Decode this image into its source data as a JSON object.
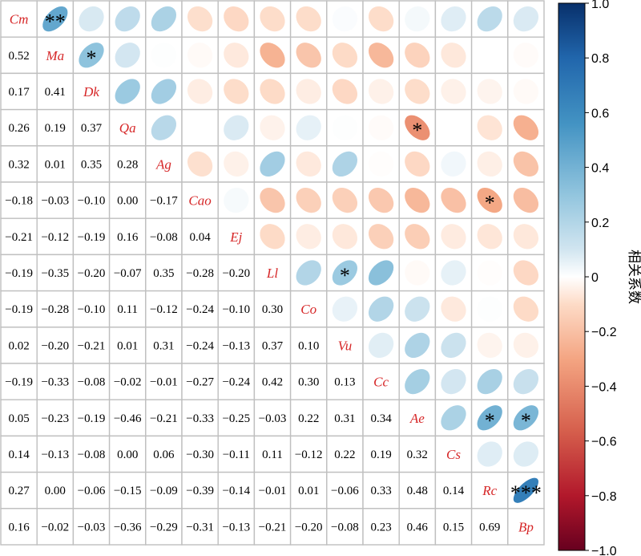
{
  "chart_data": {
    "type": "heatmap",
    "subtype": "correlation-matrix-ellipse",
    "variables": [
      "Cm",
      "Ma",
      "Dk",
      "Qa",
      "Ag",
      "Cao",
      "Ej",
      "Ll",
      "Co",
      "Vu",
      "Cc",
      "Ae",
      "Cs",
      "Rc",
      "Bp"
    ],
    "lower_triangle_labels": [
      [],
      [
        "0.52"
      ],
      [
        "0.17",
        "0.41"
      ],
      [
        "0.26",
        "0.19",
        "0.37"
      ],
      [
        "0.32",
        "0.01",
        "0.35",
        "0.28"
      ],
      [
        "−0.18",
        "−0.03",
        "−0.10",
        "0.00",
        "−0.17"
      ],
      [
        "−0.21",
        "−0.12",
        "−0.19",
        "0.16",
        "−0.08",
        "0.04"
      ],
      [
        "−0.19",
        "−0.35",
        "−0.20",
        "−0.07",
        "0.35",
        "−0.28",
        "−0.20"
      ],
      [
        "−0.19",
        "−0.28",
        "−0.10",
        "0.11",
        "−0.12",
        "−0.24",
        "−0.10",
        "0.30"
      ],
      [
        "0.02",
        "−0.20",
        "−0.21",
        "0.01",
        "0.31",
        "−0.24",
        "−0.13",
        "0.37",
        "0.10"
      ],
      [
        "−0.19",
        "−0.33",
        "−0.08",
        "−0.02",
        "−0.01",
        "−0.27",
        "−0.24",
        "0.42",
        "0.30",
        "0.13"
      ],
      [
        "0.05",
        "−0.23",
        "−0.19",
        "−0.46",
        "−0.21",
        "−0.33",
        "−0.25",
        "−0.03",
        "0.22",
        "0.31",
        "0.34"
      ],
      [
        "0.14",
        "−0.13",
        "−0.08",
        "0.00",
        "0.06",
        "−0.30",
        "−0.11",
        "0.11",
        "−0.12",
        "0.22",
        "0.19",
        "0.32"
      ],
      [
        "0.27",
        "0.00",
        "−0.06",
        "−0.15",
        "−0.09",
        "−0.39",
        "−0.14",
        "−0.01",
        "0.01",
        "−0.06",
        "0.33",
        "0.48",
        "0.14"
      ],
      [
        "0.16",
        "−0.02",
        "−0.03",
        "−0.36",
        "−0.29",
        "−0.31",
        "−0.13",
        "−0.21",
        "−0.20",
        "−0.08",
        "0.23",
        "0.46",
        "0.15",
        "0.69"
      ]
    ],
    "upper_triangle_significance": [
      [
        0,
        1,
        "**"
      ],
      [
        1,
        2,
        "*"
      ],
      [
        3,
        11,
        "*"
      ],
      [
        5,
        13,
        "*"
      ],
      [
        7,
        9,
        "*"
      ],
      [
        11,
        13,
        "*"
      ],
      [
        11,
        14,
        "*"
      ],
      [
        13,
        14,
        "***"
      ]
    ],
    "colorbar": {
      "title": "相关系数",
      "min": -1.0,
      "max": 1.0,
      "ticks": [
        "1.0",
        "0.8",
        "0.6",
        "0.4",
        "0.2",
        "0",
        "−0.2",
        "−0.4",
        "−0.6",
        "−0.8",
        "−1.0"
      ],
      "tick_values": [
        1.0,
        0.8,
        0.6,
        0.4,
        0.2,
        0,
        -0.2,
        -0.4,
        -0.6,
        -0.8,
        -1.0
      ],
      "colormap": "RdBu"
    },
    "colors": {
      "label_red": "#d62728",
      "grid": "#bfbfbf",
      "positive_strong": "#08306b",
      "negative_strong": "#67001f"
    }
  }
}
